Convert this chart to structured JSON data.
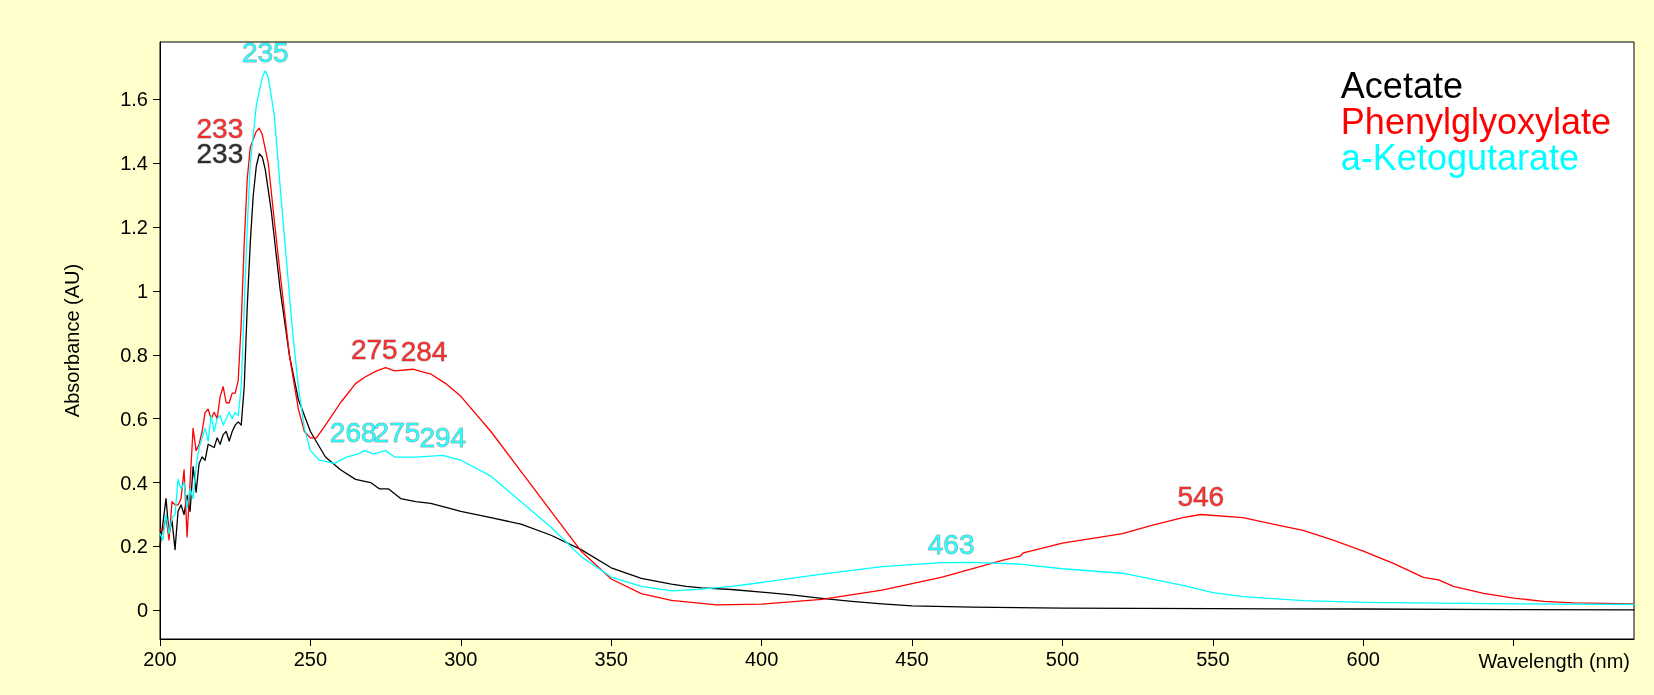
{
  "chart_data": {
    "type": "line",
    "xlabel": "Wavelength (nm)",
    "ylabel": "Absorbance (AU)",
    "xlim": [
      200,
      690
    ],
    "ylim": [
      -0.09,
      1.78
    ],
    "xticks": [
      200,
      250,
      300,
      350,
      400,
      450,
      500,
      550,
      600,
      {
        "value": 650,
        "label": null
      }
    ],
    "yticks": [
      0,
      0.2,
      0.4,
      0.6,
      0.8,
      1,
      1.2,
      1.4,
      1.6
    ],
    "grid": false,
    "legend": "top right",
    "marker": "none",
    "line_style": "solid",
    "series": [
      {
        "name": "Acetate",
        "color": "#000000",
        "x": [
          200,
          202,
          203,
          204,
          205,
          206,
          207,
          208,
          209,
          210,
          211,
          212,
          213,
          214,
          215,
          216,
          218,
          219,
          220,
          221,
          222,
          223,
          224,
          225,
          226,
          227,
          228,
          229,
          230,
          231,
          232,
          233,
          234,
          235,
          237,
          240,
          243,
          246,
          250,
          255,
          260,
          265,
          270,
          273,
          276,
          280,
          285,
          290,
          300,
          310,
          320,
          330,
          340,
          350,
          360,
          370,
          375,
          380,
          390,
          400,
          410,
          420,
          430,
          440,
          450,
          470,
          500,
          550,
          600,
          650,
          690
        ],
        "values": [
          0.2,
          0.35,
          0.24,
          0.28,
          0.19,
          0.31,
          0.33,
          0.3,
          0.36,
          0.31,
          0.45,
          0.37,
          0.46,
          0.48,
          0.47,
          0.52,
          0.51,
          0.54,
          0.52,
          0.55,
          0.56,
          0.53,
          0.56,
          0.58,
          0.59,
          0.58,
          0.7,
          0.95,
          1.15,
          1.3,
          1.39,
          1.43,
          1.42,
          1.38,
          1.25,
          1.0,
          0.8,
          0.66,
          0.56,
          0.48,
          0.44,
          0.41,
          0.4,
          0.38,
          0.38,
          0.35,
          0.34,
          0.335,
          0.31,
          0.29,
          0.27,
          0.235,
          0.19,
          0.133,
          0.1,
          0.082,
          0.075,
          0.07,
          0.065,
          0.057,
          0.048,
          0.037,
          0.028,
          0.02,
          0.014,
          0.01,
          0.007,
          0.005,
          0.004,
          0.002,
          0.001
        ]
      },
      {
        "name": "Phenylglyoxylate",
        "color": "#ff0000",
        "x": [
          200,
          201,
          202,
          203,
          204,
          205,
          206,
          207,
          208,
          209,
          210,
          211,
          212,
          213,
          214,
          215,
          216,
          217,
          218,
          219,
          220,
          221,
          222,
          223,
          224,
          225,
          226,
          227,
          228,
          229,
          230,
          232,
          233,
          234,
          236,
          238,
          240,
          243,
          246,
          248,
          250,
          252,
          255,
          260,
          265,
          268,
          272,
          275,
          278,
          284,
          290,
          295,
          300,
          310,
          320,
          330,
          340,
          350,
          360,
          370,
          385,
          400,
          420,
          440,
          460,
          480,
          486,
          487,
          500,
          520,
          530,
          540,
          546,
          560,
          570,
          580,
          590,
          600,
          610,
          620,
          625,
          630,
          640,
          650,
          660,
          670,
          690
        ],
        "values": [
          0.25,
          0.25,
          0.29,
          0.22,
          0.34,
          0.33,
          0.33,
          0.35,
          0.44,
          0.23,
          0.4,
          0.57,
          0.5,
          0.52,
          0.56,
          0.62,
          0.63,
          0.6,
          0.62,
          0.6,
          0.67,
          0.7,
          0.65,
          0.65,
          0.68,
          0.68,
          0.72,
          0.9,
          1.15,
          1.35,
          1.45,
          1.5,
          1.51,
          1.49,
          1.4,
          1.22,
          1.05,
          0.8,
          0.63,
          0.56,
          0.54,
          0.54,
          0.58,
          0.65,
          0.71,
          0.73,
          0.75,
          0.76,
          0.75,
          0.755,
          0.74,
          0.71,
          0.67,
          0.56,
          0.435,
          0.31,
          0.185,
          0.098,
          0.052,
          0.031,
          0.017,
          0.019,
          0.034,
          0.063,
          0.104,
          0.156,
          0.17,
          0.18,
          0.21,
          0.24,
          0.267,
          0.29,
          0.3,
          0.29,
          0.27,
          0.25,
          0.22,
          0.185,
          0.147,
          0.103,
          0.095,
          0.075,
          0.053,
          0.038,
          0.028,
          0.023,
          0.02
        ]
      },
      {
        "name": "a-Ketogutarate",
        "color": "#00ffff",
        "x": [
          200,
          201,
          202,
          203,
          204,
          205,
          206,
          207,
          208,
          209,
          210,
          211,
          212,
          213,
          214,
          215,
          216,
          217,
          218,
          219,
          220,
          221,
          222,
          223,
          224,
          225,
          226,
          227,
          228,
          229,
          230,
          232,
          234,
          235,
          236,
          238,
          240,
          242,
          244,
          246,
          248,
          250,
          253,
          258,
          262,
          266,
          268,
          271,
          275,
          278,
          285,
          294,
          300,
          310,
          320,
          330,
          340,
          350,
          360,
          370,
          380,
          390,
          400,
          420,
          440,
          460,
          470,
          485,
          500,
          520,
          540,
          550,
          560,
          580,
          600,
          650,
          690
        ],
        "values": [
          0.24,
          0.22,
          0.3,
          0.24,
          0.29,
          0.3,
          0.41,
          0.38,
          0.4,
          0.32,
          0.38,
          0.35,
          0.45,
          0.51,
          0.54,
          0.57,
          0.53,
          0.61,
          0.56,
          0.6,
          0.61,
          0.58,
          0.6,
          0.62,
          0.6,
          0.62,
          0.61,
          0.7,
          0.95,
          1.2,
          1.4,
          1.58,
          1.67,
          1.69,
          1.67,
          1.55,
          1.32,
          1.1,
          0.88,
          0.7,
          0.57,
          0.5,
          0.47,
          0.46,
          0.48,
          0.49,
          0.5,
          0.49,
          0.5,
          0.48,
          0.48,
          0.485,
          0.47,
          0.42,
          0.34,
          0.26,
          0.168,
          0.104,
          0.075,
          0.061,
          0.066,
          0.075,
          0.087,
          0.113,
          0.137,
          0.149,
          0.15,
          0.145,
          0.13,
          0.116,
          0.078,
          0.055,
          0.043,
          0.03,
          0.025,
          0.02,
          0.018
        ]
      }
    ],
    "annotations": [
      {
        "text": "233",
        "x": 233,
        "y": 1.51
      },
      {
        "text": "233",
        "x": 233,
        "y": 1.43
      },
      {
        "text": "235",
        "x": 235,
        "y": 1.69
      },
      {
        "text": "275",
        "x": 275,
        "y": 0.76
      },
      {
        "text": "284",
        "x": 284,
        "y": 0.755
      },
      {
        "text": "268",
        "x": 268,
        "y": 0.5
      },
      {
        "text": "275",
        "x": 275,
        "y": 0.5
      },
      {
        "text": "294",
        "x": 294,
        "y": 0.485
      },
      {
        "text": "463",
        "x": 463,
        "y": 0.15
      },
      {
        "text": "546",
        "x": 546,
        "y": 0.3
      }
    ]
  }
}
